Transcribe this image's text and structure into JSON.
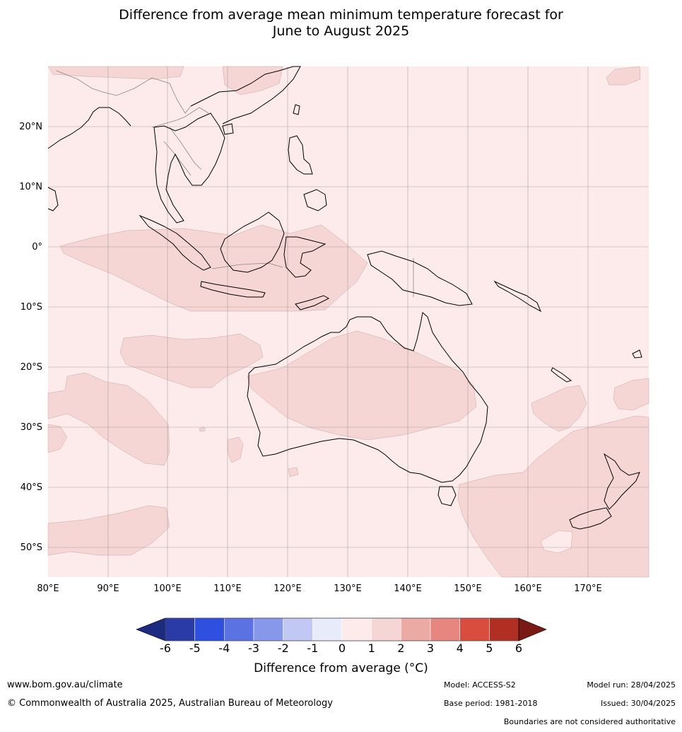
{
  "title": {
    "line1": "Difference from average mean minimum temperature forecast for",
    "line2": "June to August 2025"
  },
  "map": {
    "lon_labels": [
      "80°E",
      "90°E",
      "100°E",
      "110°E",
      "120°E",
      "130°E",
      "140°E",
      "150°E",
      "160°E",
      "170°E"
    ],
    "lat_labels": [
      "20°N",
      "10°N",
      "0°",
      "10°S",
      "20°S",
      "30°S",
      "40°S",
      "50°S"
    ],
    "background_class_color": "#fcebea",
    "warmer_class_color": "#f5d6d4"
  },
  "colorbar": {
    "ticks": [
      "-6",
      "-5",
      "-4",
      "-3",
      "-2",
      "-1",
      "0",
      "1",
      "2",
      "3",
      "4",
      "5",
      "6"
    ],
    "colors": [
      "#1c2a80",
      "#2a3ba8",
      "#2f4fe0",
      "#5a72e2",
      "#8798eb",
      "#c0c8f3",
      "#e8ebfa",
      "#fcebea",
      "#f5d6d4",
      "#ecaaa5",
      "#e6867e",
      "#d94d3f",
      "#b02e22",
      "#7a1a15"
    ],
    "label": "Difference from average ($^\\circ$C)",
    "label_display": "Difference from average (°C)"
  },
  "footer": {
    "website": "www.bom.gov.au/climate",
    "copyright": "© Commonwealth of Australia 2025, Australian Bureau of Meteorology",
    "model": "Model: ACCESS-S2",
    "base_period": "Base period: 1981-2018",
    "model_run": "Model run: 28/04/2025",
    "issued": "Issued: 30/04/2025",
    "disclaimer": "Boundaries are not considered authoritative"
  }
}
